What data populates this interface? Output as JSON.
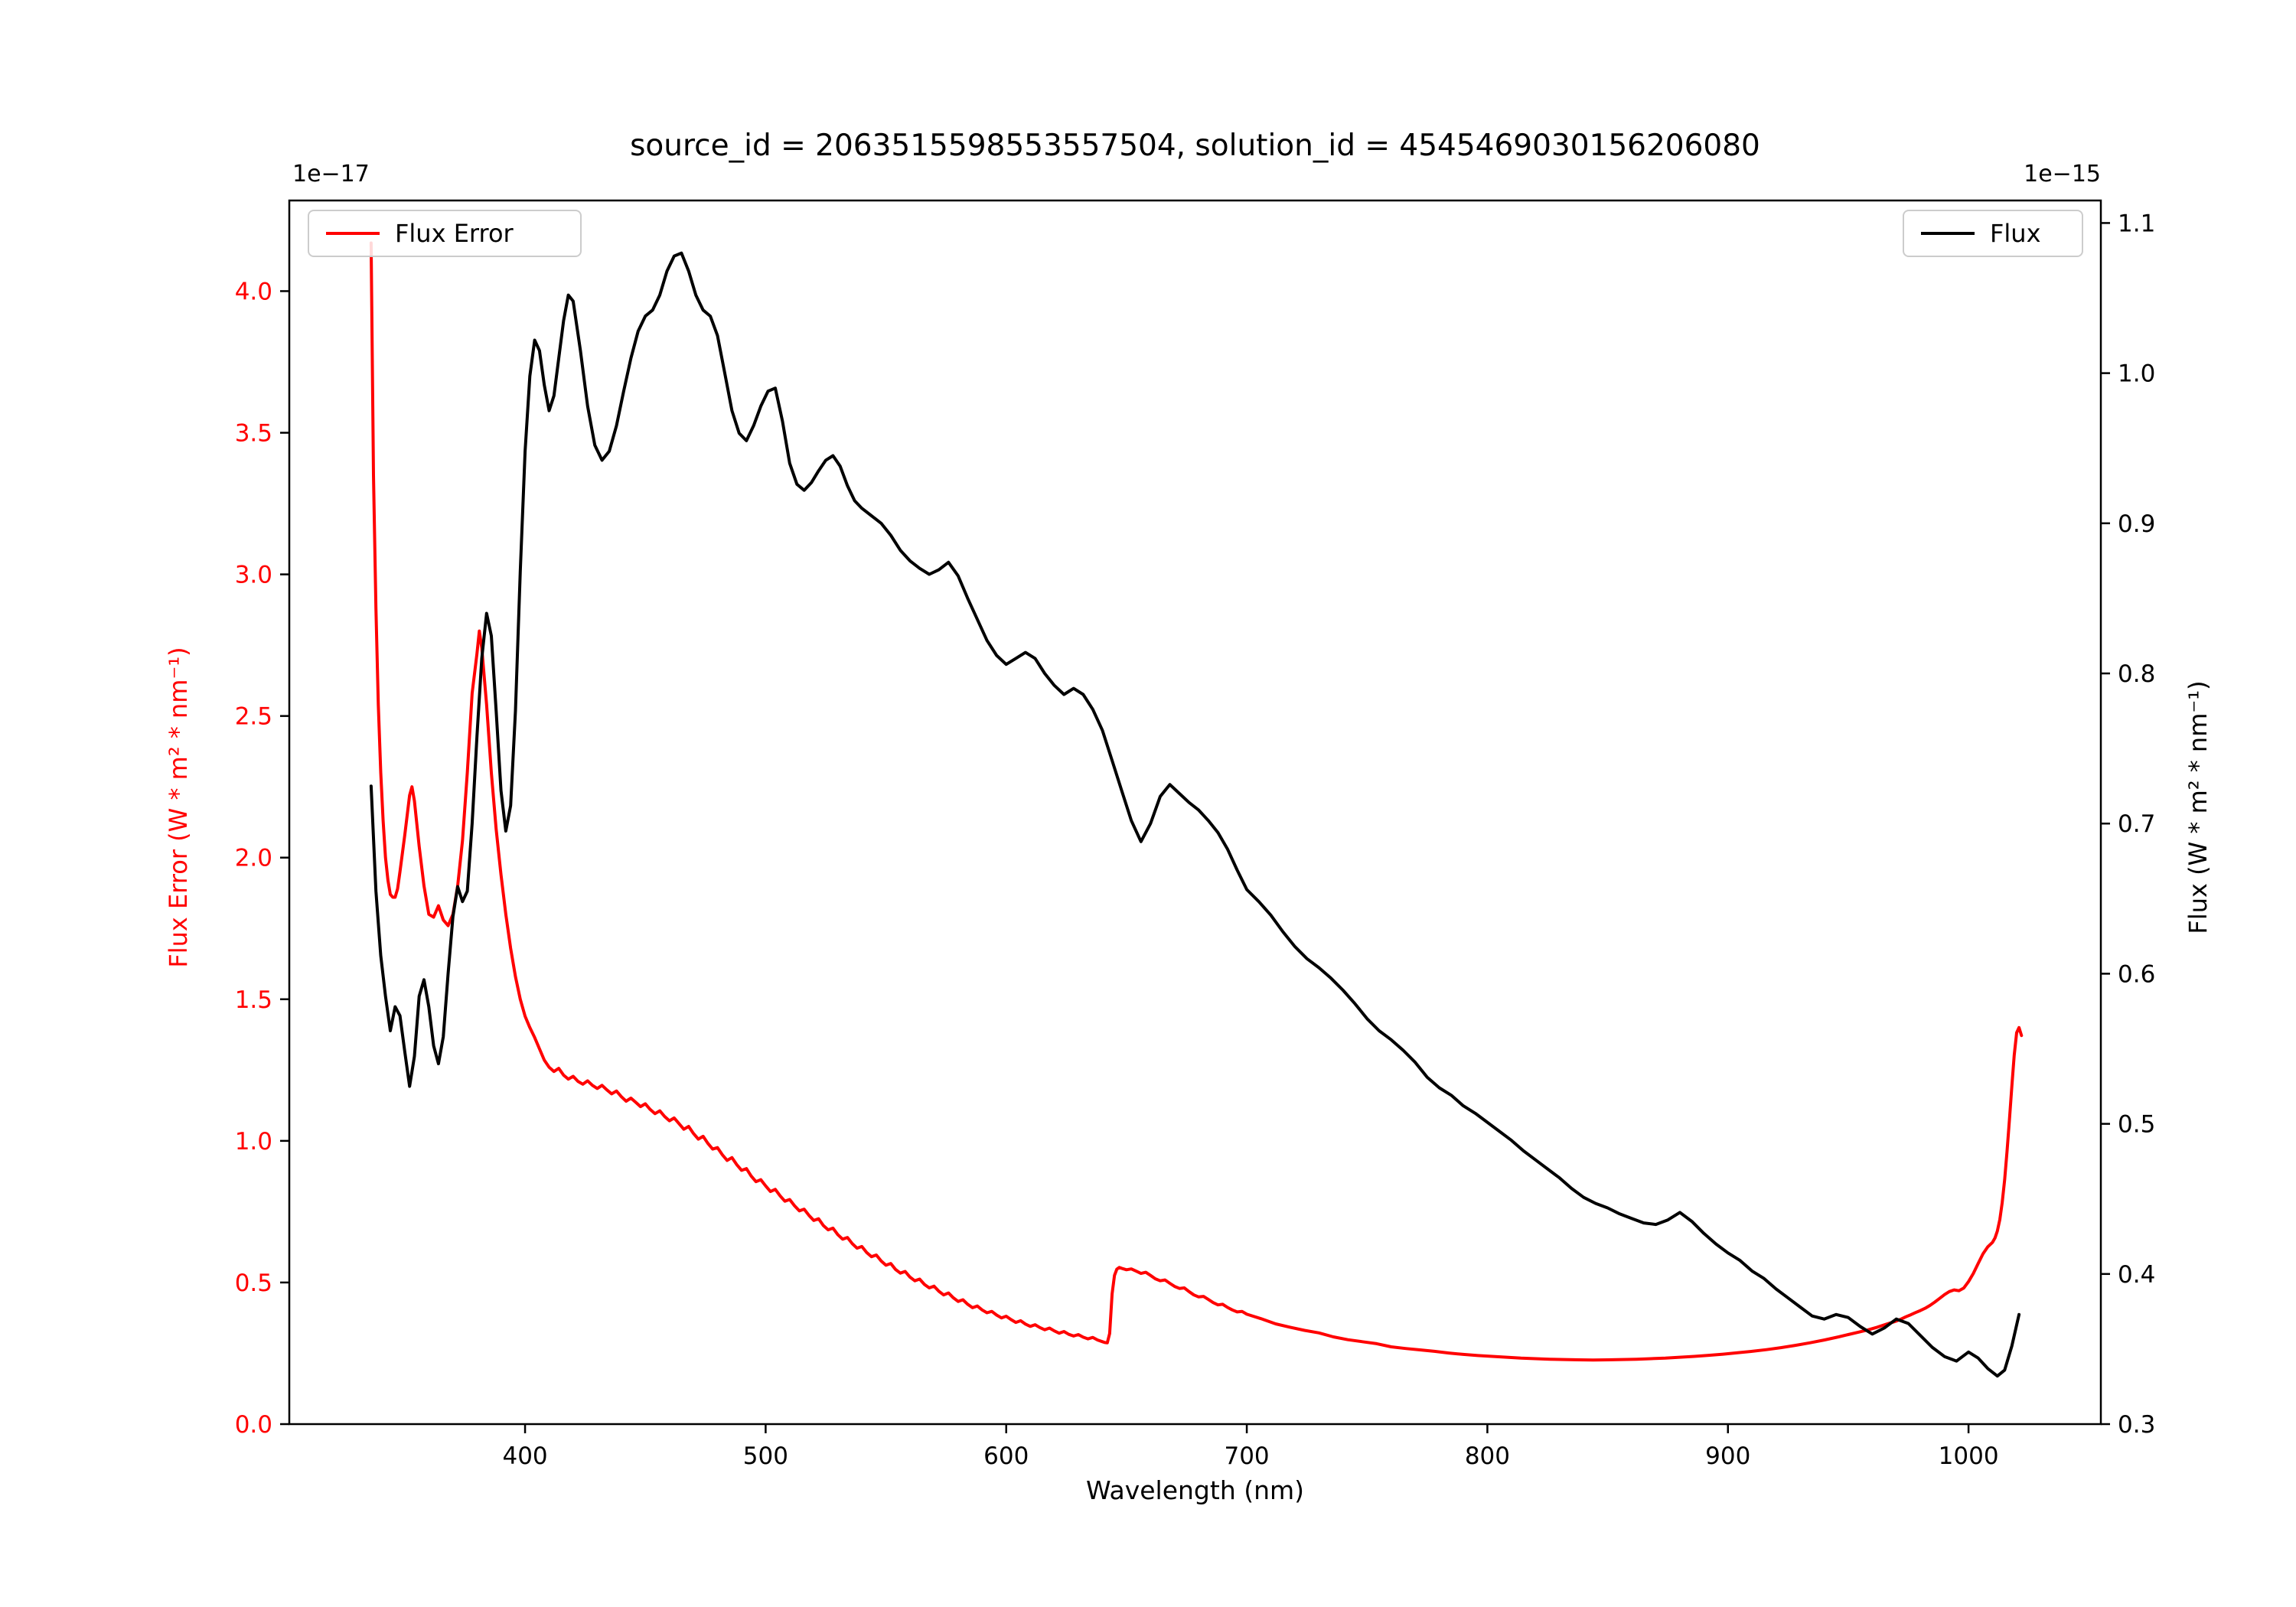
{
  "chart_data": {
    "type": "line",
    "title": "source_id = 2063515598553557504, solution_id = 4545469030156206080",
    "xlabel": "Wavelength (nm)",
    "ylabel_left": "Flux Error (W * m² * nm⁻¹)",
    "ylabel_right": "Flux (W * m² * nm⁻¹)",
    "offset_left": "1e−17",
    "offset_right": "1e−15",
    "xlim": [
      302,
      1055
    ],
    "ylim_left": [
      0,
      4.32
    ],
    "ylim_right": [
      0.3,
      1.115
    ],
    "xticks": [
      400,
      500,
      600,
      700,
      800,
      900,
      1000
    ],
    "yticks_left": [
      0.0,
      0.5,
      1.0,
      1.5,
      2.0,
      2.5,
      3.0,
      3.5,
      4.0
    ],
    "yticks_right": [
      0.3,
      0.4,
      0.5,
      0.6,
      0.7,
      0.8,
      0.9,
      1.0,
      1.1
    ],
    "grid": false,
    "legend_left": {
      "label": "Flux Error",
      "color": "#ff0000",
      "position": "upper-left"
    },
    "legend_right": {
      "label": "Flux",
      "color": "#000000",
      "position": "upper-right"
    },
    "series": [
      {
        "name": "Flux Error",
        "axis": "left",
        "units_scale": "1e-17",
        "color": "#ff0000",
        "x": [
          336,
          337,
          338,
          339,
          340,
          341,
          342,
          343,
          344,
          345,
          346,
          347,
          348,
          350,
          352,
          353,
          354,
          356,
          358,
          360,
          362,
          364,
          366,
          368,
          370,
          372,
          374,
          376,
          378,
          380,
          381,
          382,
          384,
          386,
          388,
          390,
          392,
          394,
          396,
          398,
          400,
          402,
          404,
          406,
          408,
          410,
          412,
          414,
          416,
          418,
          420,
          422,
          424,
          426,
          428,
          430,
          432,
          434,
          436,
          438,
          440,
          442,
          444,
          446,
          448,
          450,
          452,
          454,
          456,
          458,
          460,
          462,
          464,
          466,
          468,
          470,
          472,
          474,
          476,
          478,
          480,
          482,
          484,
          486,
          488,
          490,
          492,
          494,
          496,
          498,
          500,
          502,
          504,
          506,
          508,
          510,
          512,
          514,
          516,
          518,
          520,
          522,
          524,
          526,
          528,
          530,
          532,
          534,
          536,
          538,
          540,
          542,
          544,
          546,
          548,
          550,
          552,
          554,
          556,
          558,
          560,
          562,
          564,
          566,
          568,
          570,
          572,
          574,
          576,
          578,
          580,
          582,
          584,
          586,
          588,
          590,
          592,
          594,
          596,
          598,
          600,
          602,
          604,
          606,
          608,
          610,
          612,
          614,
          616,
          618,
          620,
          622,
          624,
          626,
          628,
          630,
          632,
          634,
          636,
          638,
          640,
          641,
          642,
          643,
          644,
          645,
          646,
          647,
          648,
          650,
          652,
          654,
          656,
          658,
          660,
          662,
          664,
          666,
          668,
          670,
          672,
          674,
          676,
          678,
          680,
          682,
          684,
          686,
          688,
          690,
          692,
          694,
          696,
          698,
          700,
          706,
          712,
          718,
          724,
          730,
          736,
          742,
          748,
          754,
          760,
          766,
          772,
          778,
          784,
          790,
          796,
          802,
          808,
          814,
          820,
          826,
          832,
          838,
          844,
          850,
          856,
          862,
          868,
          874,
          880,
          886,
          892,
          898,
          904,
          910,
          916,
          922,
          928,
          934,
          940,
          946,
          950,
          954,
          958,
          962,
          966,
          970,
          972,
          974,
          976,
          978,
          980,
          982,
          984,
          986,
          988,
          990,
          992,
          994,
          996,
          998,
          1000,
          1002,
          1004,
          1006,
          1008,
          1010,
          1011,
          1012,
          1013,
          1014,
          1015,
          1016,
          1017,
          1018,
          1019,
          1020,
          1021,
          1022
        ],
        "y": [
          4.17,
          3.35,
          2.88,
          2.54,
          2.3,
          2.13,
          2.0,
          1.92,
          1.87,
          1.86,
          1.86,
          1.89,
          1.95,
          2.08,
          2.22,
          2.25,
          2.2,
          2.04,
          1.9,
          1.8,
          1.79,
          1.83,
          1.78,
          1.76,
          1.8,
          1.9,
          2.06,
          2.3,
          2.58,
          2.72,
          2.8,
          2.74,
          2.54,
          2.3,
          2.1,
          1.94,
          1.8,
          1.68,
          1.58,
          1.5,
          1.44,
          1.4,
          1.365,
          1.325,
          1.285,
          1.26,
          1.245,
          1.256,
          1.232,
          1.218,
          1.228,
          1.21,
          1.2,
          1.212,
          1.196,
          1.185,
          1.196,
          1.18,
          1.166,
          1.176,
          1.156,
          1.14,
          1.151,
          1.136,
          1.121,
          1.131,
          1.111,
          1.096,
          1.106,
          1.086,
          1.071,
          1.081,
          1.061,
          1.041,
          1.051,
          1.026,
          1.006,
          1.016,
          0.991,
          0.971,
          0.976,
          0.951,
          0.931,
          0.941,
          0.916,
          0.896,
          0.902,
          0.876,
          0.856,
          0.863,
          0.841,
          0.821,
          0.829,
          0.806,
          0.787,
          0.793,
          0.771,
          0.753,
          0.759,
          0.737,
          0.719,
          0.725,
          0.701,
          0.686,
          0.692,
          0.669,
          0.653,
          0.659,
          0.637,
          0.621,
          0.627,
          0.606,
          0.591,
          0.597,
          0.576,
          0.561,
          0.567,
          0.546,
          0.533,
          0.539,
          0.519,
          0.506,
          0.512,
          0.493,
          0.481,
          0.487,
          0.469,
          0.456,
          0.463,
          0.446,
          0.433,
          0.439,
          0.423,
          0.411,
          0.417,
          0.403,
          0.393,
          0.398,
          0.385,
          0.375,
          0.381,
          0.369,
          0.359,
          0.365,
          0.353,
          0.345,
          0.351,
          0.341,
          0.333,
          0.339,
          0.329,
          0.321,
          0.327,
          0.317,
          0.311,
          0.316,
          0.307,
          0.301,
          0.306,
          0.297,
          0.291,
          0.288,
          0.287,
          0.32,
          0.46,
          0.525,
          0.547,
          0.553,
          0.55,
          0.545,
          0.548,
          0.54,
          0.532,
          0.536,
          0.525,
          0.513,
          0.506,
          0.509,
          0.497,
          0.486,
          0.479,
          0.481,
          0.468,
          0.456,
          0.449,
          0.451,
          0.44,
          0.429,
          0.421,
          0.423,
          0.412,
          0.403,
          0.396,
          0.398,
          0.388,
          0.372,
          0.354,
          0.342,
          0.331,
          0.322,
          0.308,
          0.298,
          0.291,
          0.284,
          0.273,
          0.267,
          0.262,
          0.257,
          0.251,
          0.246,
          0.242,
          0.239,
          0.236,
          0.233,
          0.231,
          0.229,
          0.228,
          0.227,
          0.226,
          0.227,
          0.228,
          0.229,
          0.231,
          0.233,
          0.236,
          0.239,
          0.243,
          0.247,
          0.252,
          0.257,
          0.263,
          0.27,
          0.278,
          0.287,
          0.297,
          0.308,
          0.316,
          0.324,
          0.332,
          0.342,
          0.353,
          0.364,
          0.371,
          0.379,
          0.386,
          0.394,
          0.401,
          0.409,
          0.419,
          0.431,
          0.444,
          0.457,
          0.468,
          0.474,
          0.471,
          0.48,
          0.503,
          0.532,
          0.567,
          0.601,
          0.626,
          0.642,
          0.657,
          0.682,
          0.722,
          0.782,
          0.862,
          0.962,
          1.072,
          1.192,
          1.302,
          1.382,
          1.4,
          1.372
        ]
      },
      {
        "name": "Flux",
        "axis": "right",
        "units_scale": "1e-15",
        "color": "#000000",
        "x": [
          336,
          338,
          340,
          342,
          344,
          346,
          348,
          350,
          352,
          354,
          356,
          358,
          360,
          362,
          364,
          366,
          368,
          370,
          372,
          374,
          376,
          378,
          380,
          382,
          384,
          386,
          388,
          390,
          392,
          394,
          396,
          398,
          400,
          402,
          404,
          406,
          408,
          410,
          412,
          414,
          416,
          418,
          420,
          423,
          426,
          429,
          432,
          435,
          438,
          441,
          444,
          447,
          450,
          453,
          456,
          459,
          462,
          465,
          468,
          471,
          474,
          477,
          480,
          483,
          486,
          489,
          492,
          495,
          498,
          501,
          504,
          507,
          510,
          513,
          516,
          519,
          522,
          525,
          528,
          531,
          534,
          537,
          540,
          544,
          548,
          552,
          556,
          560,
          564,
          568,
          572,
          576,
          580,
          584,
          588,
          592,
          596,
          600,
          604,
          608,
          612,
          616,
          620,
          624,
          628,
          632,
          636,
          640,
          644,
          648,
          652,
          656,
          660,
          664,
          668,
          672,
          676,
          680,
          684,
          688,
          692,
          696,
          700,
          705,
          710,
          715,
          720,
          725,
          730,
          735,
          740,
          745,
          750,
          755,
          760,
          765,
          770,
          775,
          780,
          785,
          790,
          795,
          800,
          805,
          810,
          815,
          820,
          825,
          830,
          835,
          840,
          845,
          850,
          855,
          860,
          865,
          870,
          875,
          880,
          885,
          890,
          895,
          900,
          905,
          910,
          915,
          920,
          925,
          930,
          935,
          940,
          945,
          950,
          955,
          960,
          965,
          970,
          975,
          980,
          985,
          990,
          995,
          1000,
          1004,
          1008,
          1012,
          1015,
          1018,
          1021
        ],
        "y": [
          0.725,
          0.655,
          0.612,
          0.585,
          0.562,
          0.578,
          0.572,
          0.548,
          0.525,
          0.545,
          0.585,
          0.596,
          0.578,
          0.552,
          0.54,
          0.558,
          0.6,
          0.638,
          0.658,
          0.648,
          0.655,
          0.7,
          0.758,
          0.81,
          0.84,
          0.825,
          0.775,
          0.722,
          0.695,
          0.712,
          0.775,
          0.868,
          0.948,
          0.998,
          1.022,
          1.015,
          0.992,
          0.975,
          0.985,
          1.01,
          1.035,
          1.052,
          1.048,
          1.015,
          0.978,
          0.952,
          0.942,
          0.948,
          0.965,
          0.988,
          1.01,
          1.028,
          1.038,
          1.042,
          1.052,
          1.068,
          1.078,
          1.08,
          1.068,
          1.052,
          1.042,
          1.038,
          1.025,
          1.0,
          0.975,
          0.96,
          0.955,
          0.965,
          0.978,
          0.988,
          0.99,
          0.968,
          0.94,
          0.926,
          0.922,
          0.927,
          0.935,
          0.942,
          0.945,
          0.938,
          0.925,
          0.915,
          0.91,
          0.905,
          0.9,
          0.892,
          0.882,
          0.875,
          0.87,
          0.866,
          0.869,
          0.874,
          0.865,
          0.85,
          0.836,
          0.822,
          0.812,
          0.806,
          0.81,
          0.814,
          0.81,
          0.8,
          0.792,
          0.786,
          0.79,
          0.786,
          0.776,
          0.762,
          0.742,
          0.722,
          0.702,
          0.688,
          0.7,
          0.718,
          0.726,
          0.72,
          0.714,
          0.709,
          0.702,
          0.694,
          0.683,
          0.669,
          0.656,
          0.648,
          0.639,
          0.628,
          0.618,
          0.61,
          0.604,
          0.597,
          0.589,
          0.58,
          0.57,
          0.562,
          0.556,
          0.549,
          0.541,
          0.531,
          0.524,
          0.519,
          0.512,
          0.507,
          0.501,
          0.495,
          0.489,
          0.482,
          0.476,
          0.47,
          0.464,
          0.457,
          0.451,
          0.447,
          0.444,
          0.44,
          0.437,
          0.434,
          0.433,
          0.436,
          0.441,
          0.435,
          0.427,
          0.42,
          0.414,
          0.409,
          0.402,
          0.397,
          0.39,
          0.384,
          0.378,
          0.372,
          0.37,
          0.373,
          0.371,
          0.365,
          0.36,
          0.364,
          0.37,
          0.367,
          0.359,
          0.351,
          0.345,
          0.342,
          0.348,
          0.344,
          0.337,
          0.332,
          0.336,
          0.352,
          0.373
        ]
      }
    ]
  }
}
